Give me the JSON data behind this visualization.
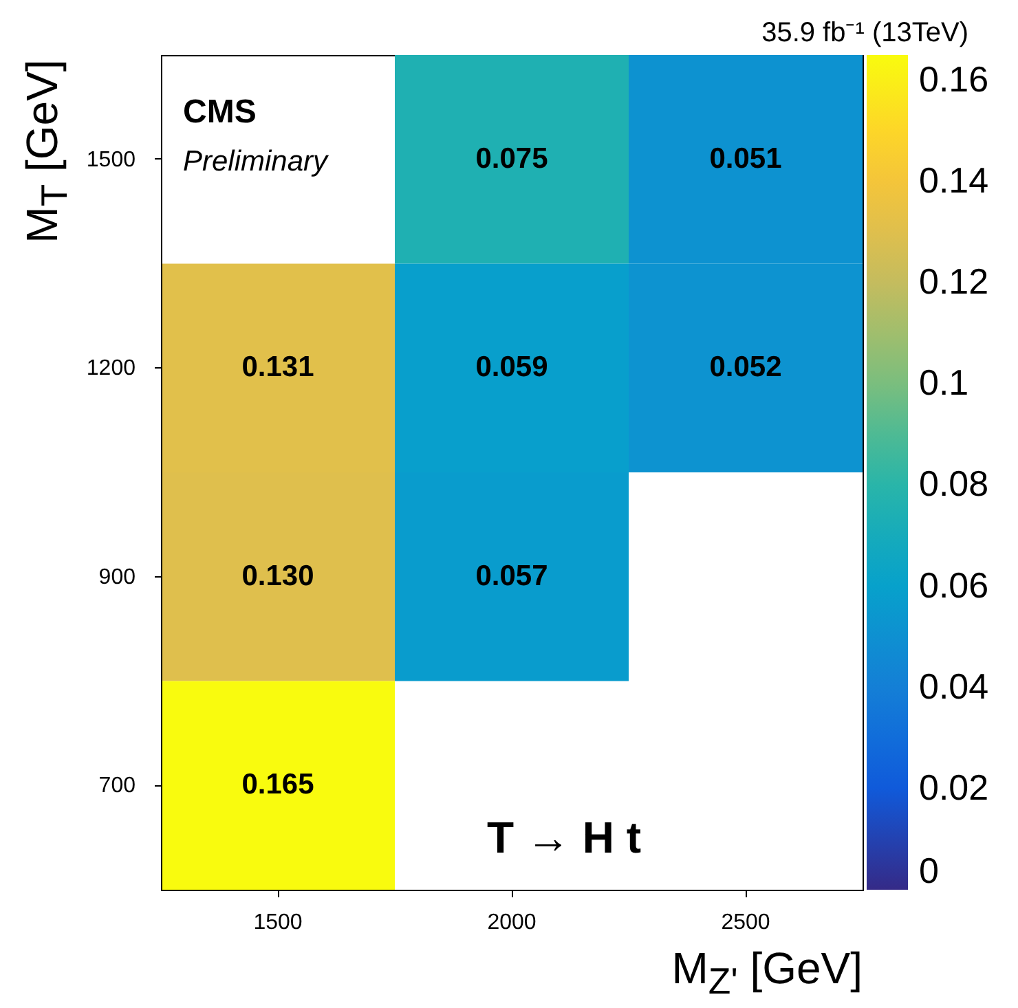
{
  "chart_data": {
    "type": "heatmap",
    "title": "35.9 fb⁻¹ (13TeV)",
    "xlabel": "M$_{Z'}$ [GeV]",
    "ylabel": "M$_{T}$ [GeV]",
    "categories": [
      "1500",
      "2000",
      "2500"
    ],
    "y_categories": [
      "1500",
      "1200",
      "900",
      "700"
    ],
    "cells": [
      [
        null,
        0.075,
        0.051
      ],
      [
        0.131,
        0.059,
        0.052
      ],
      [
        0.13,
        0.057,
        null
      ],
      [
        0.165,
        null,
        null
      ]
    ],
    "cell_labels": [
      [
        null,
        "0.075",
        "0.051"
      ],
      [
        "0.131",
        "0.059",
        "0.052"
      ],
      [
        "0.130",
        "0.057",
        null
      ],
      [
        "0.165",
        null,
        null
      ]
    ],
    "clim": [
      0,
      0.165
    ],
    "cticks": [
      0,
      0.02,
      0.04,
      0.06,
      0.08,
      0.1,
      0.12,
      0.14,
      0.16
    ],
    "annotations": [
      "CMS",
      "Preliminary",
      "T → H t"
    ]
  }
}
